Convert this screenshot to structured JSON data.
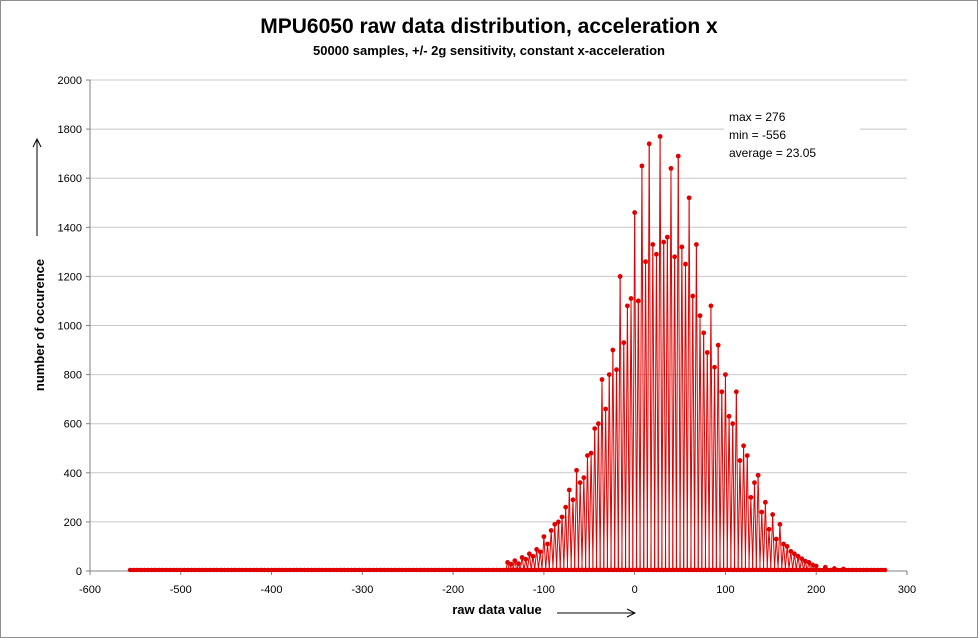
{
  "chart_data": {
    "type": "line",
    "title": "MPU6050 raw data distribution, acceleration x",
    "subtitle": "50000 samples, +/- 2g sensitivity, constant x-acceleration",
    "xlabel": "raw data value",
    "ylabel": "number of occurence",
    "xlim": [
      -600,
      300
    ],
    "ylim": [
      0,
      2000
    ],
    "xticks": [
      "-600",
      "-500",
      "-400",
      "-300",
      "-200",
      "-100",
      "0",
      "100",
      "200",
      "300"
    ],
    "yticks": [
      "0",
      "200",
      "400",
      "600",
      "800",
      "1000",
      "1200",
      "1400",
      "1600",
      "1800",
      "2000"
    ],
    "grid": true,
    "legend": "none",
    "series_color": "#e00000",
    "annotations": [
      "max = 276",
      "min = -556",
      "average = 23.05"
    ],
    "x_range": [
      -556,
      276
    ],
    "series": [
      {
        "x": [
          -140,
          -136,
          -132,
          -128,
          -124,
          -120,
          -116,
          -112,
          -108,
          -104,
          -100,
          -96,
          -92,
          -88,
          -84,
          -80,
          -76,
          -72,
          -68,
          -64,
          -60,
          -56,
          -52,
          -48,
          -44,
          -40,
          -36,
          -32,
          -28,
          -24,
          -20,
          -16,
          -12,
          -8,
          -4,
          0,
          4,
          8,
          12,
          16,
          20,
          24,
          28,
          32,
          36,
          40,
          44,
          48,
          52,
          56,
          60,
          64,
          68,
          72,
          76,
          80,
          84,
          88,
          92,
          96,
          100,
          104,
          108,
          112,
          116,
          120,
          124,
          128,
          132,
          136,
          140,
          144,
          148,
          152,
          156,
          160,
          164,
          168,
          172,
          176,
          180,
          184,
          188,
          192,
          196,
          200,
          210,
          220,
          230
        ],
        "y": [
          35,
          28,
          42,
          30,
          55,
          48,
          70,
          60,
          88,
          78,
          140,
          110,
          165,
          190,
          200,
          220,
          260,
          330,
          290,
          410,
          360,
          380,
          470,
          480,
          580,
          600,
          780,
          660,
          800,
          900,
          820,
          1200,
          930,
          1080,
          1110,
          1460,
          1100,
          1650,
          1260,
          1740,
          1330,
          1290,
          1770,
          1340,
          1360,
          1640,
          1280,
          1690,
          1320,
          1250,
          1520,
          1120,
          1330,
          1040,
          970,
          890,
          1080,
          830,
          920,
          730,
          800,
          630,
          600,
          730,
          450,
          510,
          470,
          300,
          360,
          390,
          240,
          280,
          170,
          230,
          130,
          190,
          110,
          100,
          80,
          70,
          60,
          50,
          40,
          35,
          25,
          20,
          15,
          10,
          8
        ]
      }
    ]
  }
}
